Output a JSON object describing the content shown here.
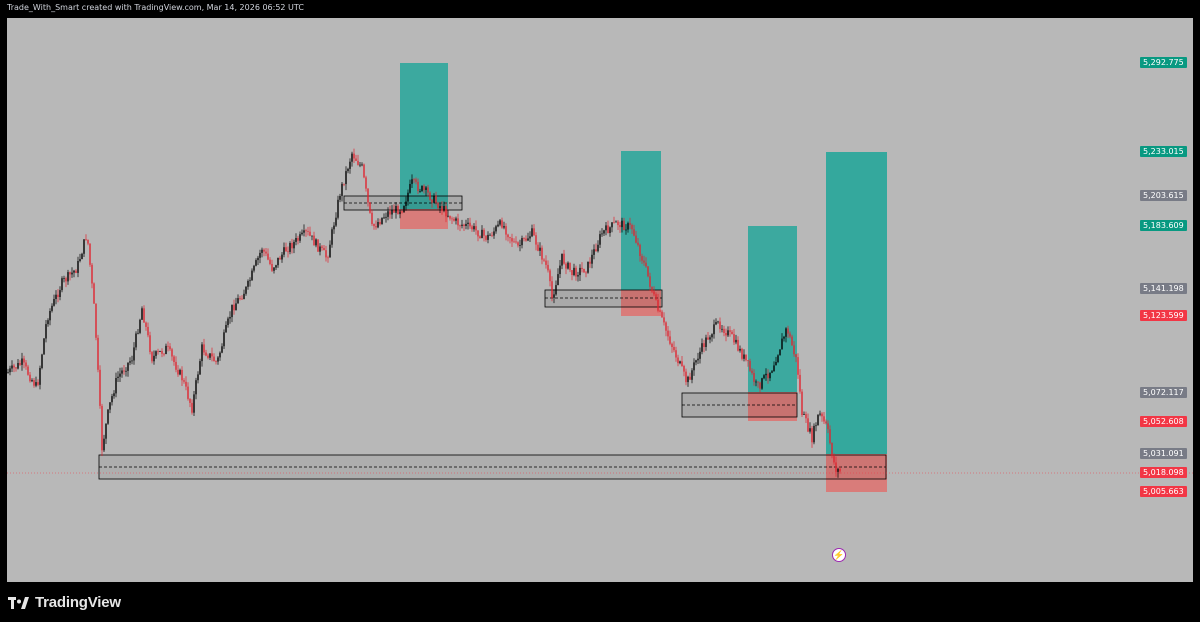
{
  "header": {
    "attribution": "Trade_With_Smart created with TradingView.com, Mar 14, 2026 06:52 UTC"
  },
  "footer": {
    "brand": "TradingView"
  },
  "colors": {
    "background": "#b8b8b8",
    "bull_candle": "#000000",
    "bear_candle": "#e0252f",
    "target_zone": "#26a69a",
    "stop_zone": "#ef5350",
    "gray_label": "#787b86",
    "green_label": "#089981",
    "red_label": "#f23645"
  },
  "price_axis": {
    "labels": [
      {
        "text": "5,292.775",
        "color": "green"
      },
      {
        "text": "5,233.015",
        "color": "green"
      },
      {
        "text": "5,203.615",
        "color": "gray"
      },
      {
        "text": "5,183.609",
        "color": "green"
      },
      {
        "text": "5,141.198",
        "color": "gray"
      },
      {
        "text": "5,123.599",
        "color": "red"
      },
      {
        "text": "5,072.117",
        "color": "gray"
      },
      {
        "text": "5,052.608",
        "color": "red"
      },
      {
        "text": "5,031.091",
        "color": "gray"
      },
      {
        "text": "5,018.098",
        "color": "red"
      },
      {
        "text": "5,005.663",
        "color": "red"
      }
    ]
  },
  "icons": {
    "replay": "flash-icon",
    "logo": "tradingview-logo-icon"
  }
}
